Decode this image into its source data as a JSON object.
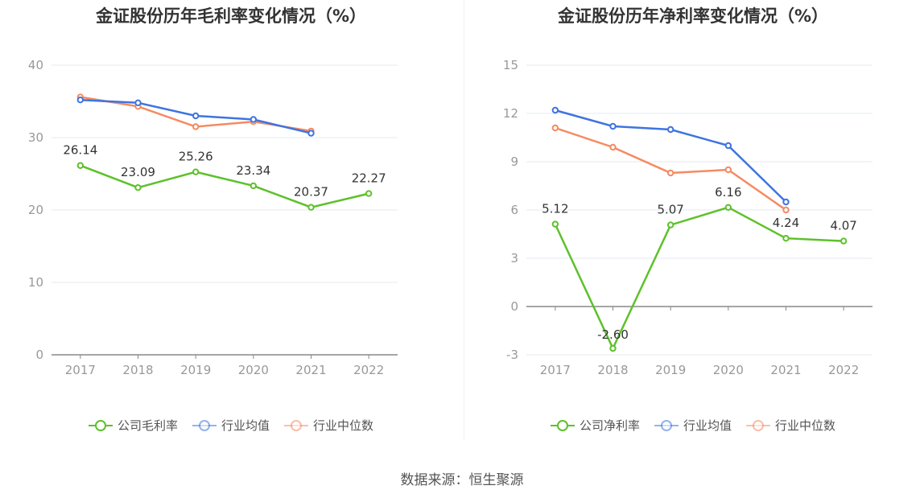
{
  "source_label": "数据来源：恒生聚源",
  "chart_data": [
    {
      "type": "line",
      "title": "金证股份历年毛利率变化情况（%）",
      "categories": [
        "2017",
        "2018",
        "2019",
        "2020",
        "2021",
        "2022"
      ],
      "ylim": [
        0,
        40
      ],
      "yticks": [
        0,
        10,
        20,
        30,
        40
      ],
      "grid": true,
      "legend": "bottom-center",
      "series": [
        {
          "name": "公司毛利率",
          "color": "#5dc12a",
          "labels": true,
          "values": [
            26.14,
            23.09,
            25.26,
            23.34,
            20.37,
            22.27
          ]
        },
        {
          "name": "行业均值",
          "color": "#3e74e0",
          "labels": false,
          "values": [
            35.2,
            34.8,
            33.0,
            32.5,
            30.6,
            null
          ]
        },
        {
          "name": "行业中位数",
          "color": "#f58a62",
          "labels": false,
          "values": [
            35.6,
            34.3,
            31.5,
            32.2,
            30.9,
            null
          ]
        }
      ]
    },
    {
      "type": "line",
      "title": "金证股份历年净利率变化情况（%）",
      "categories": [
        "2017",
        "2018",
        "2019",
        "2020",
        "2021",
        "2022"
      ],
      "ylim": [
        -3,
        15
      ],
      "yticks": [
        -3,
        0,
        3,
        6,
        9,
        12,
        15
      ],
      "grid": true,
      "legend": "bottom-center",
      "series": [
        {
          "name": "公司净利率",
          "color": "#5dc12a",
          "labels": true,
          "values": [
            5.12,
            -2.6,
            5.07,
            6.16,
            4.24,
            4.07
          ]
        },
        {
          "name": "行业均值",
          "color": "#3e74e0",
          "labels": false,
          "values": [
            12.2,
            11.2,
            11.0,
            10.0,
            6.5,
            null
          ]
        },
        {
          "name": "行业中位数",
          "color": "#f58a62",
          "labels": false,
          "values": [
            11.1,
            9.9,
            8.3,
            8.5,
            6.0,
            null
          ]
        }
      ]
    }
  ]
}
